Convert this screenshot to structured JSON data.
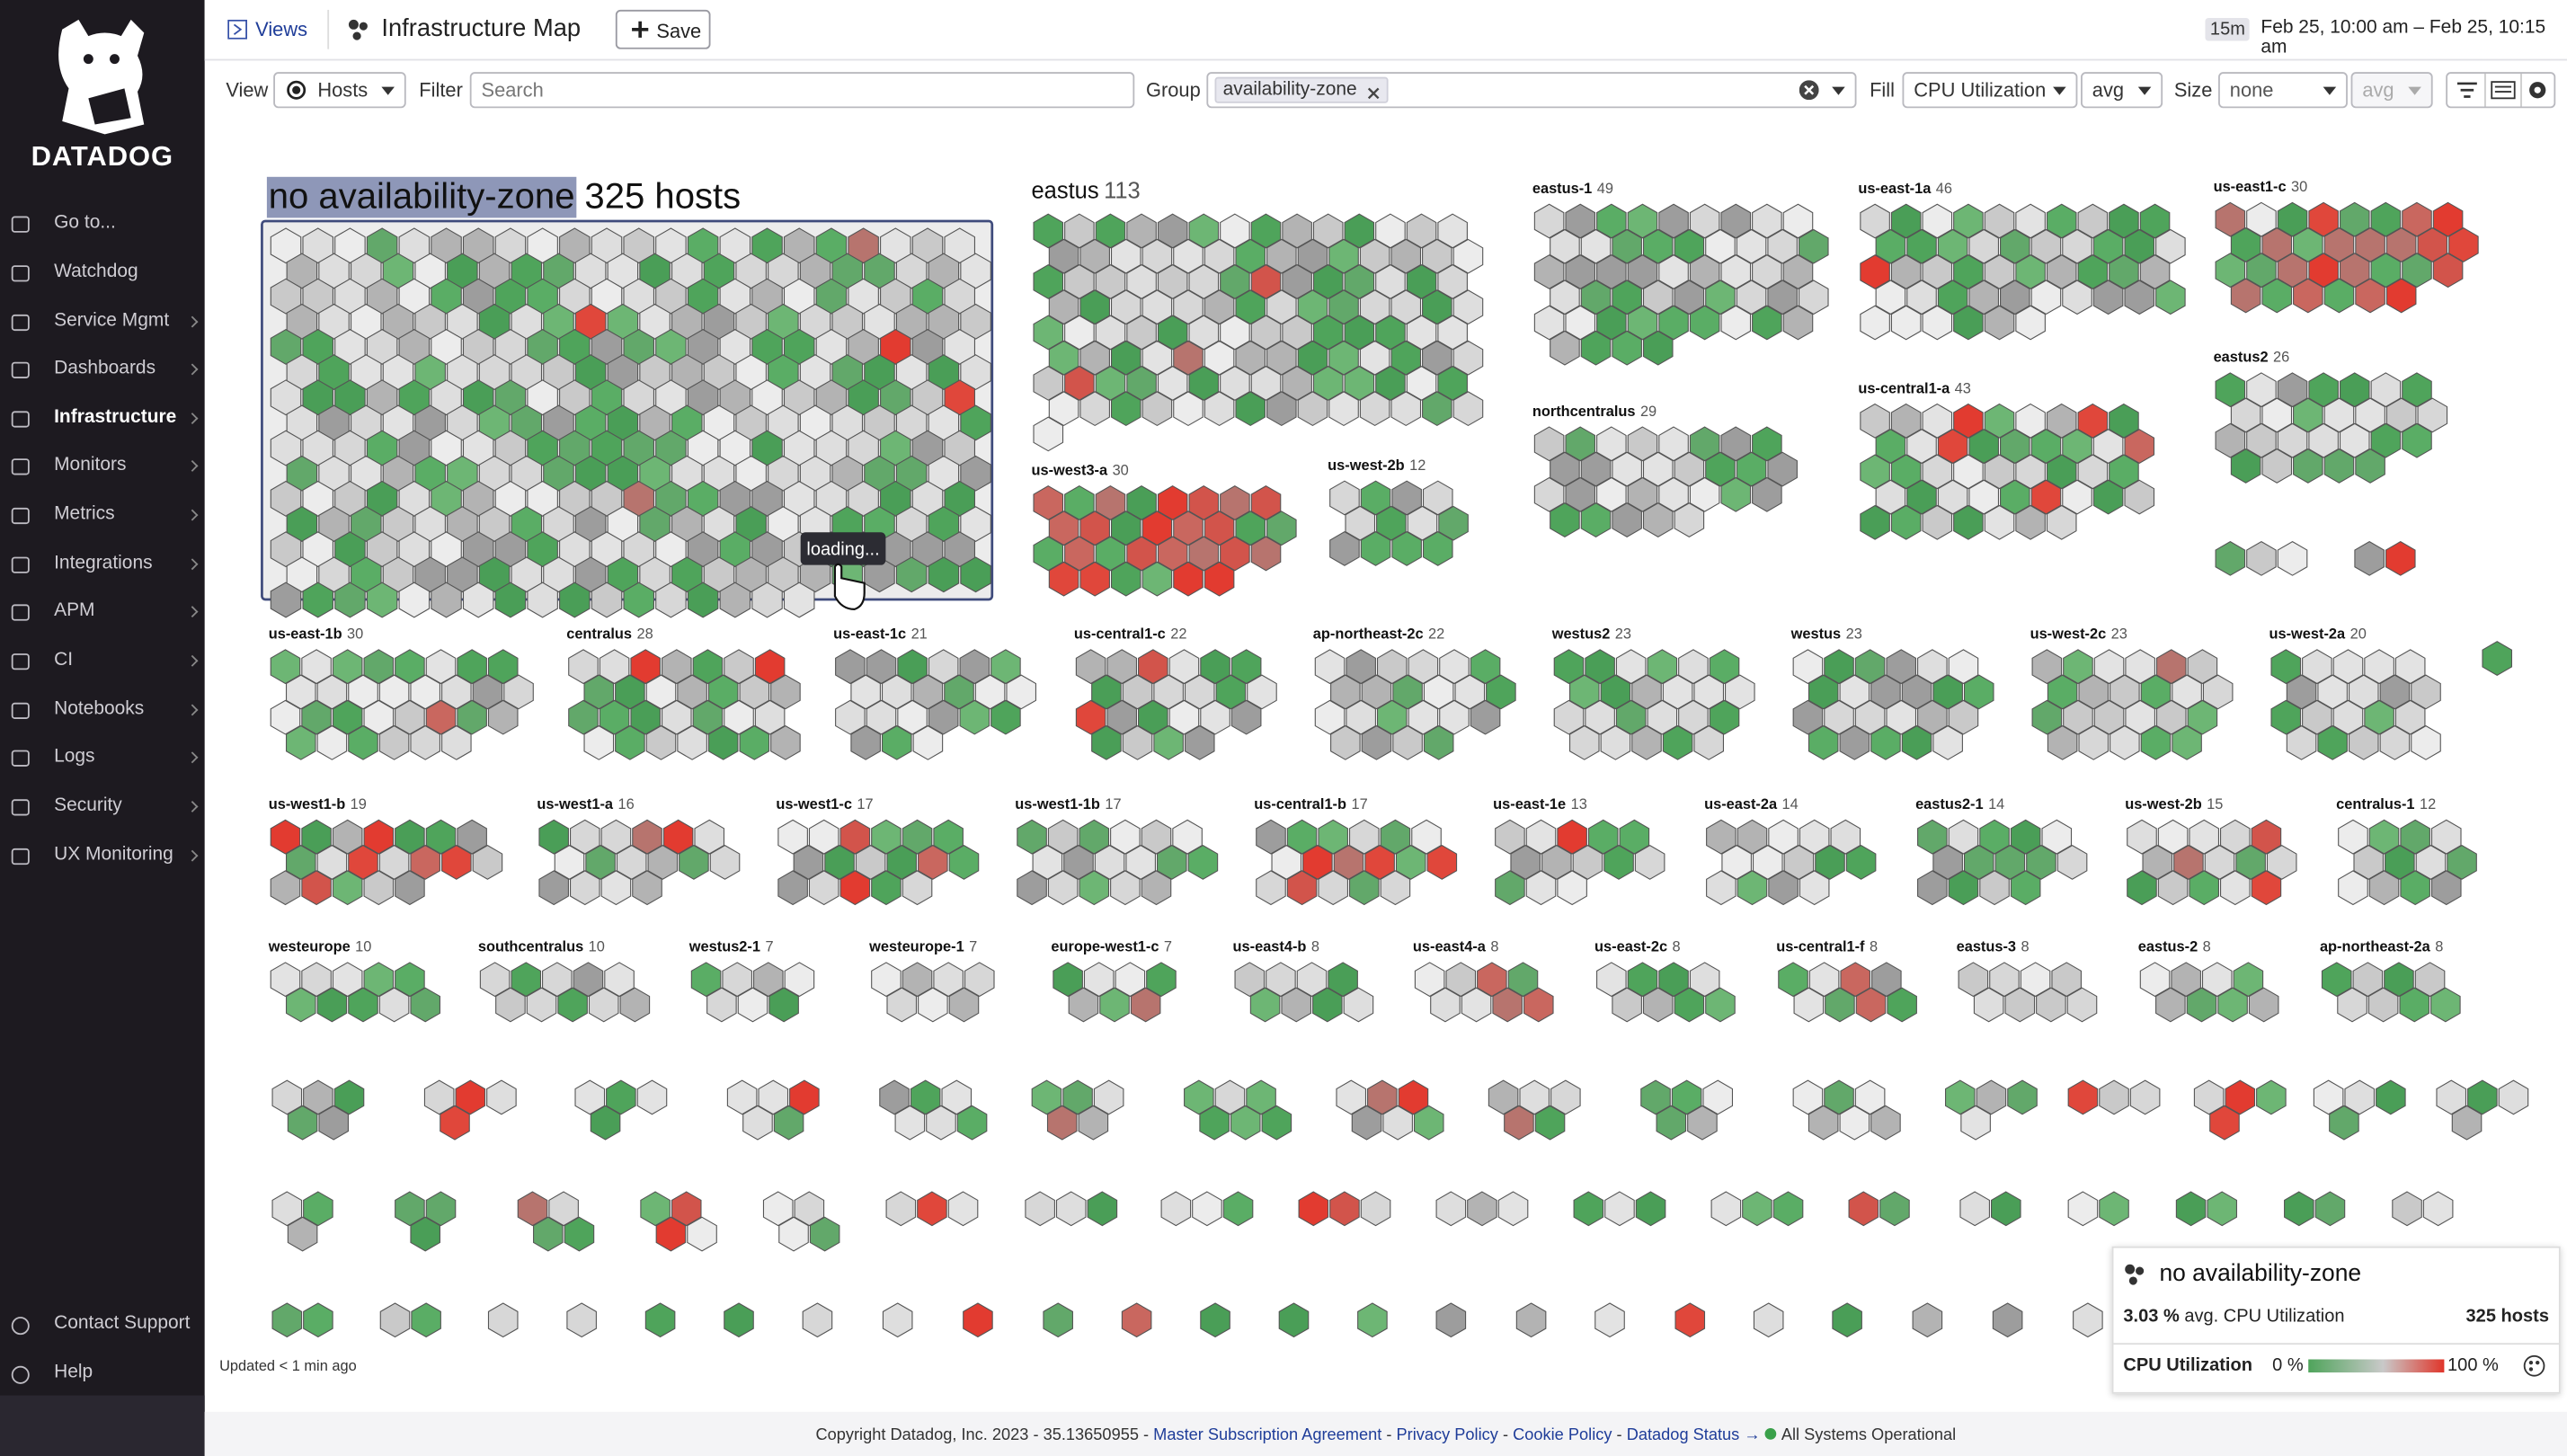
{
  "sidebar": {
    "brand": "DATADOG",
    "items": [
      "Go to...",
      "Watchdog",
      "Service Mgmt",
      "Dashboards",
      "Infrastructure",
      "Monitors",
      "Metrics",
      "Integrations",
      "APM",
      "CI",
      "Notebooks",
      "Logs",
      "Security",
      "UX Monitoring"
    ],
    "footer_items": [
      "Contact Support",
      "Help"
    ]
  },
  "header": {
    "views": "Views",
    "title": "Infrastructure Map",
    "save": "Save",
    "time_range": "15m",
    "time_text": "Feb 25, 10:00 am – Feb 25, 10:15 am"
  },
  "toolbar": {
    "view_label": "View",
    "view_value": "Hosts",
    "filter_label": "Filter",
    "filter_placeholder": "Search",
    "group_label": "Group",
    "group_chip": "availability-zone",
    "fill_label": "Fill",
    "fill_metric": "CPU Utilization",
    "fill_agg": "avg",
    "size_label": "Size",
    "size_metric": "none",
    "size_agg": "avg"
  },
  "groups": [
    {
      "name": "no availability-zone",
      "count": 325,
      "count_label": "325 hosts"
    },
    {
      "name": "eastus",
      "count": 113
    },
    {
      "name": "eastus-1",
      "count": 49
    },
    {
      "name": "us-east-1a",
      "count": 46
    },
    {
      "name": "us-east1-c",
      "count": 30
    },
    {
      "name": "northcentralus",
      "count": 29
    },
    {
      "name": "us-central1-a",
      "count": 43
    },
    {
      "name": "eastus2",
      "count": 26
    },
    {
      "name": "us-west3-a",
      "count": 30
    },
    {
      "name": "us-west-2b",
      "count": 12
    },
    {
      "name": "us-east-1b",
      "count": 30
    },
    {
      "name": "centralus",
      "count": 28
    },
    {
      "name": "us-east-1c",
      "count": 21
    },
    {
      "name": "us-central1-c",
      "count": 22
    },
    {
      "name": "ap-northeast-2c",
      "count": 22
    },
    {
      "name": "westus2",
      "count": 23
    },
    {
      "name": "westus",
      "count": 23
    },
    {
      "name": "us-west-2c",
      "count": 23
    },
    {
      "name": "us-west-2a",
      "count": 20
    },
    {
      "name": "us-west1-b",
      "count": 19
    },
    {
      "name": "us-west1-a",
      "count": 16
    },
    {
      "name": "us-west1-c",
      "count": 17
    },
    {
      "name": "us-west1-1b",
      "count": 17
    },
    {
      "name": "us-central1-b",
      "count": 17
    },
    {
      "name": "us-east-1e",
      "count": 13
    },
    {
      "name": "us-east-2a",
      "count": 14
    },
    {
      "name": "eastus2-1",
      "count": 14
    },
    {
      "name": "us-west-2b",
      "count": 15
    },
    {
      "name": "centralus-1",
      "count": 12
    },
    {
      "name": "westeurope",
      "count": 10
    },
    {
      "name": "southcentralus",
      "count": 10
    },
    {
      "name": "westus2-1",
      "count": 7
    },
    {
      "name": "westeurope-1",
      "count": 7
    },
    {
      "name": "europe-west1-c",
      "count": 7
    },
    {
      "name": "us-east4-b",
      "count": 8
    },
    {
      "name": "us-east4-a",
      "count": 8
    },
    {
      "name": "us-east-2c",
      "count": 8
    },
    {
      "name": "us-central1-f",
      "count": 8
    },
    {
      "name": "eastus-3",
      "count": 8
    },
    {
      "name": "eastus-2",
      "count": 8
    },
    {
      "name": "ap-northeast-2a",
      "count": 8
    }
  ],
  "tooltip": "loading...",
  "updated": "Updated < 1 min ago",
  "legend": {
    "title": "no availability-zone",
    "avg": "3.03 %",
    "avg_text": "avg. CPU Utilization",
    "hosts": "325 hosts",
    "metric": "CPU Utilization",
    "min_label": "0 %",
    "max_label": "100 %"
  },
  "footer": {
    "copyright": "Copyright Datadog, Inc. 2023 - 35.13650955 -",
    "links": [
      "Master Subscription Agreement",
      "Privacy Policy",
      "Cookie Policy",
      "Datadog Status →"
    ],
    "separator": "-",
    "status": "All Systems Operational"
  }
}
